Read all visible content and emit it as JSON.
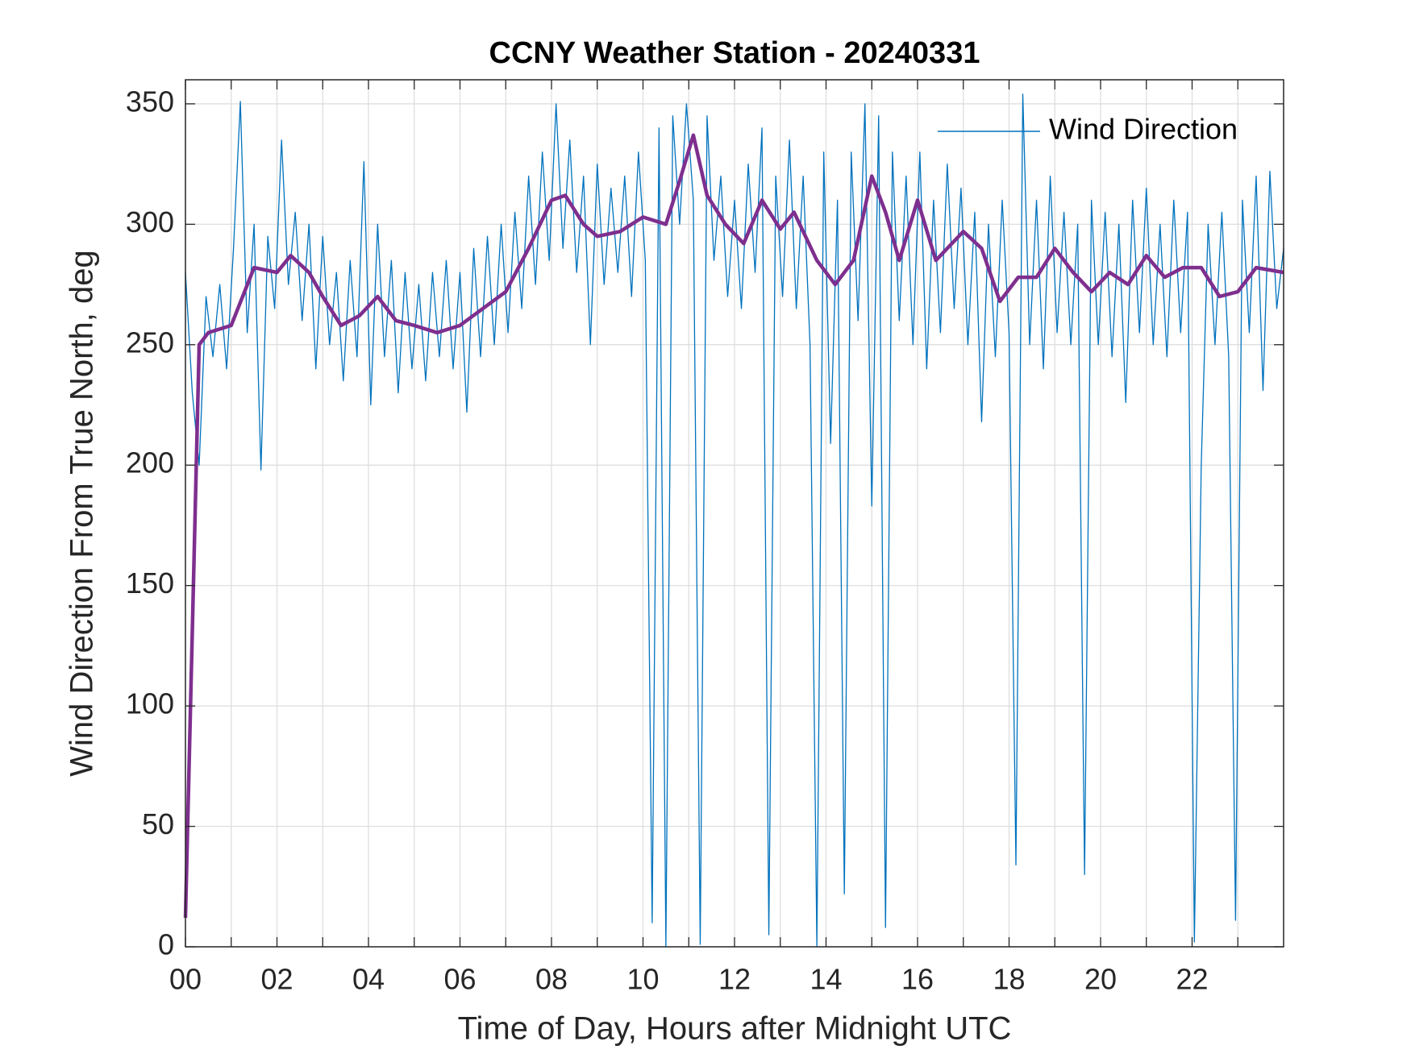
{
  "chart_data": {
    "type": "line",
    "title": "CCNY Weather Station - 20240331",
    "xlabel": "Time of Day, Hours after Midnight UTC",
    "ylabel": "Wind Direction From True North, deg",
    "xlim": [
      0,
      24
    ],
    "ylim": [
      0,
      360
    ],
    "xticks": [
      {
        "value": 0,
        "label": "00"
      },
      {
        "value": 2,
        "label": "02"
      },
      {
        "value": 4,
        "label": "04"
      },
      {
        "value": 6,
        "label": "06"
      },
      {
        "value": 8,
        "label": "08"
      },
      {
        "value": 10,
        "label": "10"
      },
      {
        "value": 12,
        "label": "12"
      },
      {
        "value": 14,
        "label": "14"
      },
      {
        "value": 16,
        "label": "16"
      },
      {
        "value": 18,
        "label": "18"
      },
      {
        "value": 20,
        "label": "20"
      },
      {
        "value": 22,
        "label": "22"
      }
    ],
    "xminorticks": [
      1,
      3,
      5,
      7,
      9,
      11,
      13,
      15,
      17,
      19,
      21,
      23
    ],
    "yticks": [
      0,
      50,
      100,
      150,
      200,
      250,
      300,
      350
    ],
    "grid": true,
    "legend": "northeast",
    "series": [
      {
        "name": "Wind Direction",
        "color": "#0072BD",
        "width": 1.3,
        "x": [
          0,
          0.15,
          0.3,
          0.45,
          0.6,
          0.75,
          0.9,
          1.05,
          1.2,
          1.35,
          1.5,
          1.65,
          1.8,
          1.95,
          2.1,
          2.25,
          2.4,
          2.55,
          2.7,
          2.85,
          3,
          3.15,
          3.3,
          3.45,
          3.6,
          3.75,
          3.9,
          4.05,
          4.2,
          4.35,
          4.5,
          4.65,
          4.8,
          4.95,
          5.1,
          5.25,
          5.4,
          5.55,
          5.7,
          5.85,
          6,
          6.15,
          6.3,
          6.45,
          6.6,
          6.75,
          6.9,
          7.05,
          7.2,
          7.35,
          7.5,
          7.65,
          7.8,
          7.95,
          8.1,
          8.25,
          8.4,
          8.55,
          8.7,
          8.85,
          9,
          9.15,
          9.3,
          9.45,
          9.6,
          9.75,
          9.9,
          10.05,
          10.2,
          10.35,
          10.5,
          10.65,
          10.8,
          10.95,
          11.1,
          11.25,
          11.4,
          11.55,
          11.7,
          11.85,
          12,
          12.15,
          12.3,
          12.45,
          12.6,
          12.75,
          12.9,
          13.05,
          13.2,
          13.35,
          13.5,
          13.65,
          13.8,
          13.95,
          14.1,
          14.25,
          14.4,
          14.55,
          14.7,
          14.85,
          15,
          15.15,
          15.3,
          15.45,
          15.6,
          15.75,
          15.9,
          16.05,
          16.2,
          16.35,
          16.5,
          16.65,
          16.8,
          16.95,
          17.1,
          17.25,
          17.4,
          17.55,
          17.7,
          17.85,
          18,
          18.15,
          18.3,
          18.45,
          18.6,
          18.75,
          18.9,
          19.05,
          19.2,
          19.35,
          19.5,
          19.65,
          19.8,
          19.95,
          20.1,
          20.25,
          20.4,
          20.55,
          20.7,
          20.85,
          21,
          21.15,
          21.3,
          21.45,
          21.6,
          21.75,
          21.9,
          22.05,
          22.2,
          22.35,
          22.5,
          22.65,
          22.8,
          22.95,
          23.1,
          23.25,
          23.4,
          23.55,
          23.7,
          23.85,
          24
        ],
        "values": [
          280,
          230,
          200,
          270,
          245,
          275,
          240,
          290,
          351,
          255,
          300,
          198,
          295,
          265,
          335,
          275,
          305,
          260,
          300,
          240,
          295,
          250,
          280,
          235,
          285,
          245,
          326,
          225,
          300,
          245,
          285,
          230,
          280,
          240,
          275,
          235,
          280,
          245,
          285,
          240,
          280,
          222,
          290,
          245,
          295,
          250,
          300,
          255,
          305,
          265,
          320,
          275,
          330,
          285,
          350,
          290,
          335,
          280,
          320,
          250,
          325,
          275,
          315,
          280,
          320,
          270,
          330,
          285,
          10,
          340,
          0,
          345,
          300,
          350,
          310,
          1,
          345,
          285,
          320,
          270,
          310,
          265,
          325,
          280,
          340,
          5,
          320,
          270,
          335,
          265,
          320,
          250,
          0,
          330,
          209,
          310,
          22,
          330,
          260,
          350,
          183,
          345,
          8,
          330,
          260,
          320,
          250,
          330,
          240,
          310,
          255,
          325,
          265,
          315,
          250,
          305,
          218,
          300,
          245,
          310,
          255,
          34,
          354,
          250,
          310,
          240,
          320,
          255,
          305,
          250,
          300,
          30,
          310,
          250,
          305,
          245,
          300,
          226,
          310,
          255,
          315,
          250,
          300,
          245,
          310,
          255,
          305,
          2,
          200,
          300,
          250,
          305,
          245,
          11,
          310,
          255,
          320,
          231,
          322,
          265,
          290
        ]
      },
      {
        "color": "#7E2F8E",
        "width": 4.5,
        "x": [
          0,
          0.3,
          0.5,
          1,
          1.5,
          2,
          2.3,
          2.7,
          3,
          3.4,
          3.8,
          4.2,
          4.6,
          5,
          5.5,
          6,
          6.5,
          7,
          7.5,
          8,
          8.3,
          8.7,
          9,
          9.5,
          10,
          10.5,
          10.8,
          11.1,
          11.4,
          11.8,
          12.2,
          12.6,
          13,
          13.3,
          13.8,
          14.2,
          14.6,
          15,
          15.3,
          15.6,
          16,
          16.4,
          17,
          17.4,
          17.8,
          18.2,
          18.6,
          19,
          19.4,
          19.8,
          20.2,
          20.6,
          21,
          21.4,
          21.8,
          22.2,
          22.6,
          23,
          23.4,
          24
        ],
        "values": [
          12,
          250,
          255,
          258,
          282,
          280,
          287,
          280,
          270,
          258,
          262,
          270,
          260,
          258,
          255,
          258,
          265,
          272,
          290,
          310,
          312,
          300,
          295,
          297,
          303,
          300,
          318,
          337,
          312,
          300,
          292,
          310,
          298,
          305,
          285,
          275,
          285,
          320,
          305,
          285,
          310,
          285,
          297,
          290,
          268,
          278,
          278,
          290,
          280,
          272,
          280,
          275,
          287,
          278,
          282,
          282,
          270,
          272,
          282,
          280
        ]
      }
    ]
  }
}
